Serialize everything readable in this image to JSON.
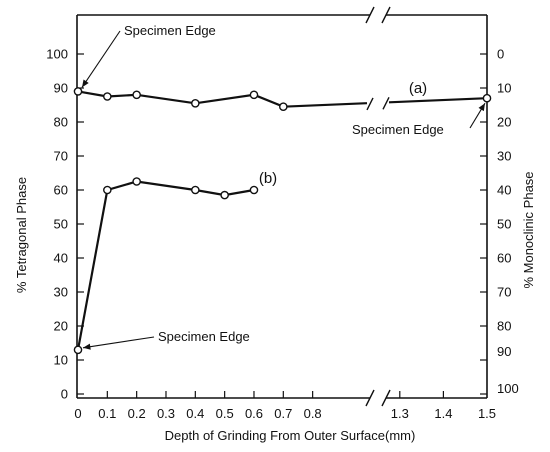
{
  "chart_data": {
    "type": "line",
    "xlabel": "Depth of Grinding From Outer Surface(mm)",
    "ylabel": "% Tetragonal Phase",
    "ylabel_right": "% Monoclinic Phase",
    "ylim": [
      0,
      110
    ],
    "y_ticks": [
      "0",
      "10",
      "20",
      "30",
      "40",
      "50",
      "60",
      "70",
      "80",
      "90",
      "100"
    ],
    "y_ticks_right": [
      "100",
      "90",
      "80",
      "70",
      "60",
      "50",
      "40",
      "30",
      "20",
      "10",
      "0"
    ],
    "x_axis_break": [
      0.85,
      1.25
    ],
    "x_ticks": [
      "0",
      "0.1",
      "0.2",
      "0.3",
      "0.4",
      "0.5",
      "0.6",
      "0.7",
      "0.8",
      "1.3",
      "1.4",
      "1.5"
    ],
    "x_tick_values": [
      0,
      0.1,
      0.2,
      0.3,
      0.4,
      0.5,
      0.6,
      0.7,
      0.8,
      1.3,
      1.4,
      1.5
    ],
    "grid": false,
    "series": [
      {
        "name": "(a)",
        "x": [
          0,
          0.1,
          0.2,
          0.4,
          0.6,
          0.7,
          1.5
        ],
        "y": [
          89,
          87.5,
          88,
          85.5,
          88,
          84.5,
          87
        ],
        "markers": [
          true,
          true,
          true,
          true,
          true,
          true,
          true
        ]
      },
      {
        "name": "(b)",
        "x": [
          0,
          0.1,
          0.2,
          0.4,
          0.5,
          0.6
        ],
        "y": [
          13,
          60,
          62.5,
          60,
          58.5,
          60
        ],
        "markers": [
          true,
          true,
          true,
          true,
          true,
          true
        ]
      }
    ],
    "annotations": [
      {
        "text": "Specimen Edge",
        "x": 0,
        "y": 89
      },
      {
        "text": "Specimen Edge",
        "x": 1.5,
        "y": 87
      },
      {
        "text": "Specimen Edge",
        "x": 0,
        "y": 13
      }
    ]
  }
}
